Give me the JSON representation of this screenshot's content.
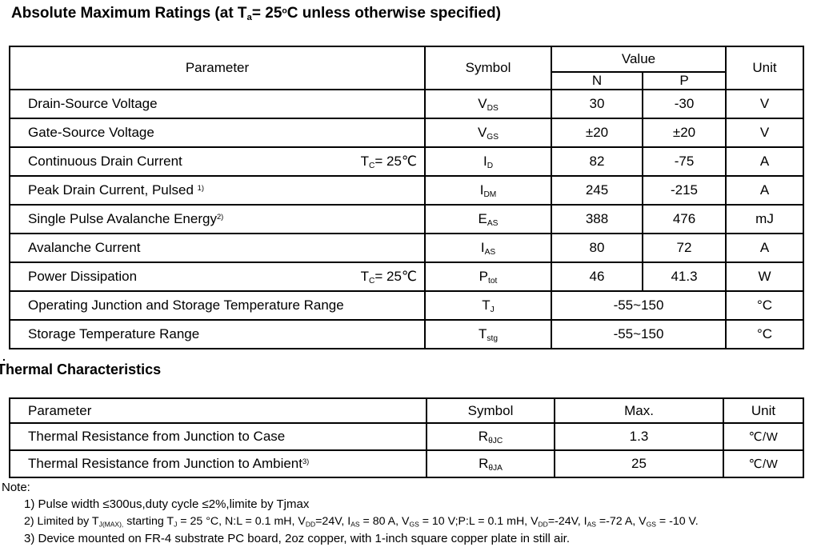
{
  "titles": {
    "abs_max": [
      {
        "t": "Absolute Maximum Ratings (at T"
      },
      {
        "sub": "a"
      },
      {
        "t": "= 25"
      },
      {
        "sup": "o"
      },
      {
        "t": "C unless otherwise specified)"
      }
    ],
    "dot": ".",
    "thermal": "Thermal Characteristics"
  },
  "abs_table": {
    "headers": {
      "parameter": "Parameter",
      "symbol": "Symbol",
      "value": "Value",
      "n": "N",
      "p": "P",
      "unit": "Unit"
    },
    "rows": [
      {
        "name": [
          {
            "t": "Drain-Source Voltage"
          }
        ],
        "cond": [],
        "symbol": [
          {
            "t": "V"
          },
          {
            "sub": "DS"
          }
        ],
        "n": "30",
        "p": "-30",
        "unit": "V"
      },
      {
        "name": [
          {
            "t": "Gate-Source Voltage"
          }
        ],
        "cond": [],
        "symbol": [
          {
            "t": "V"
          },
          {
            "sub": "GS"
          }
        ],
        "n": "±20",
        "p": "±20",
        "unit": "V"
      },
      {
        "name": [
          {
            "t": "Continuous Drain Current"
          }
        ],
        "cond": [
          {
            "t": "T"
          },
          {
            "sub": "C"
          },
          {
            "t": "= 25℃"
          }
        ],
        "symbol": [
          {
            "t": "I"
          },
          {
            "sub": "D"
          }
        ],
        "n": "82",
        "p": "-75",
        "unit": "A"
      },
      {
        "name": [
          {
            "t": "Peak Drain Current, Pulsed "
          },
          {
            "sup": "1)"
          }
        ],
        "cond": [],
        "symbol": [
          {
            "t": "I"
          },
          {
            "sub": "DM"
          }
        ],
        "n": "245",
        "p": "-215",
        "unit": "A"
      },
      {
        "name": [
          {
            "t": "Single Pulse Avalanche Energy"
          },
          {
            "sup": "2)"
          }
        ],
        "cond": [],
        "symbol": [
          {
            "t": "E"
          },
          {
            "sub": "AS"
          }
        ],
        "n": "388",
        "p": "476",
        "unit": "mJ"
      },
      {
        "name": [
          {
            "t": "Avalanche Current"
          }
        ],
        "cond": [],
        "symbol": [
          {
            "t": "I"
          },
          {
            "sub": "AS"
          }
        ],
        "n": "80",
        "p": "72",
        "unit": "A"
      },
      {
        "name": [
          {
            "t": "Power Dissipation"
          }
        ],
        "cond": [
          {
            "t": "T"
          },
          {
            "sub": "C"
          },
          {
            "t": "= 25℃"
          }
        ],
        "symbol": [
          {
            "t": "P"
          },
          {
            "sub": "tot"
          }
        ],
        "n": "46",
        "p": "41.3",
        "unit": "W"
      },
      {
        "name": [
          {
            "t": "Operating Junction and Storage Temperature Range"
          }
        ],
        "cond": [],
        "symbol": [
          {
            "t": "T"
          },
          {
            "sub": "J"
          }
        ],
        "value": "-55~150",
        "unit": "°C",
        "merged": true
      },
      {
        "name": [
          {
            "t": "Storage Temperature Range"
          }
        ],
        "cond": [],
        "symbol": [
          {
            "t": "T"
          },
          {
            "sub": "stg"
          }
        ],
        "value": "-55~150",
        "unit": "°C",
        "merged": true
      }
    ]
  },
  "thermal_table": {
    "headers": {
      "parameter": "Parameter",
      "symbol": "Symbol",
      "max": "Max.",
      "unit": "Unit"
    },
    "rows": [
      {
        "name": [
          {
            "t": "Thermal Resistance from Junction to Case"
          }
        ],
        "symbol": [
          {
            "t": "R"
          },
          {
            "sub": "θJC"
          }
        ],
        "max": "1.3",
        "unit": "℃/W"
      },
      {
        "name": [
          {
            "t": "Thermal Resistance from Junction to Ambient"
          },
          {
            "sup": "3)"
          }
        ],
        "symbol": [
          {
            "t": "R"
          },
          {
            "sub": "θJA"
          }
        ],
        "max": "25",
        "unit": "℃/W"
      }
    ]
  },
  "notes": {
    "label": "Note:",
    "line1": [
      {
        "t": "1) Pulse width ≤300us,duty cycle ≤2%,limite by Tjmax"
      }
    ],
    "line2": [
      {
        "t": "2)  Limited by T"
      },
      {
        "sub": "J(MAX),"
      },
      {
        "t": " starting T"
      },
      {
        "sub": "J"
      },
      {
        "t": " = 25 °C, N:L = 0.1 mH, V"
      },
      {
        "sub": "DD"
      },
      {
        "t": "=24V, I"
      },
      {
        "sub": "AS"
      },
      {
        "t": " = 80 A, V"
      },
      {
        "sub": "GS"
      },
      {
        "t": " = 10 V;P:L = 0.1 mH, V"
      },
      {
        "sub": "DD"
      },
      {
        "t": "=-24V, I"
      },
      {
        "sub": "AS"
      },
      {
        "t": " =-72 A, V"
      },
      {
        "sub": "GS"
      },
      {
        "t": " = -10 V."
      }
    ],
    "line3": [
      {
        "t": "3) Device mounted on FR-4 substrate PC board, 2oz copper, with 1-inch square copper plate in still air."
      }
    ]
  }
}
